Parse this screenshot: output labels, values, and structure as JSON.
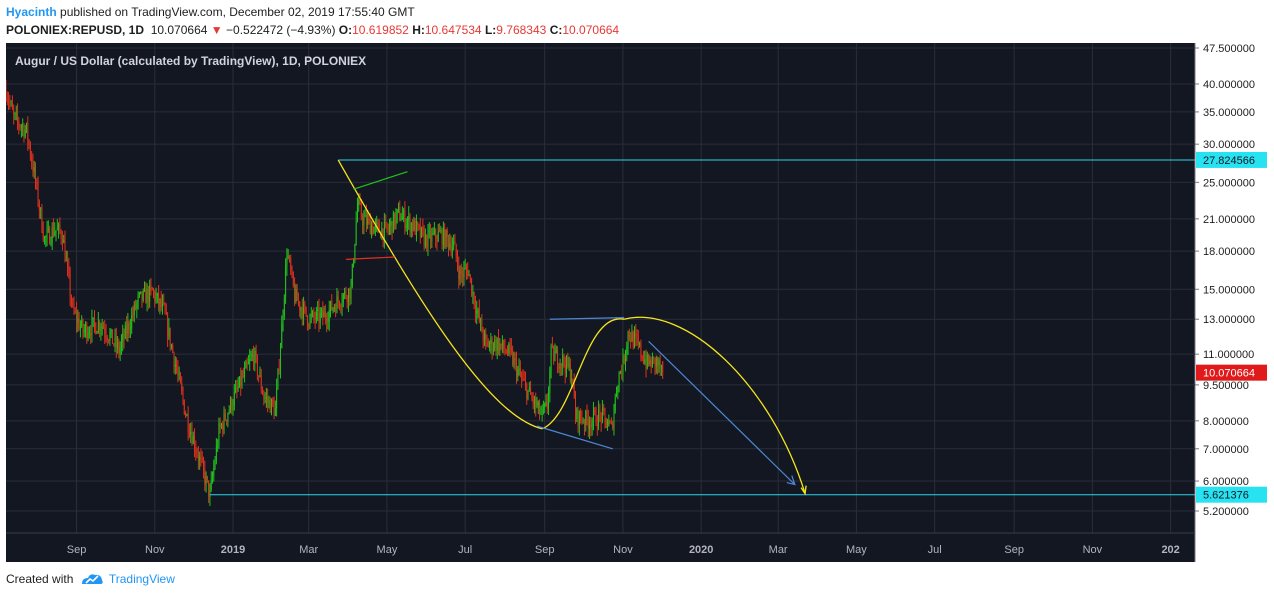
{
  "header": {
    "author": "Hyacinth",
    "published_text": "published on TradingView.com, December 02, 2019 17:55:40 GMT",
    "symbol": "POLONIEX:REPUSD, 1D",
    "last": "10.070664",
    "change_arrow": "▼",
    "change": "−0.522472 (−4.93%)",
    "o_label": "O:",
    "o_value": "10.619852",
    "h_label": "H:",
    "h_value": "10.647534",
    "l_label": "L:",
    "l_value": "9.768343",
    "c_label": "C:",
    "c_value": "10.070664"
  },
  "footer": {
    "created_with": "Created with",
    "brand": "TradingView"
  },
  "colors": {
    "background": "#131722",
    "up": "#22c31b",
    "down": "#e0321d",
    "grid": "#2a2e39",
    "text": "#b2b5be",
    "resistance_line": "#29d6ef",
    "arc": "#f6e61b",
    "wedge": "#4f87d5",
    "price_label": "#e01a1a",
    "level_label": "#27e3f2"
  },
  "chart_data": {
    "type": "candlestick",
    "title": "Augur / US Dollar (calculated by TradingView), 1D, POLONIEX",
    "y_scale": "log",
    "ylim": [
      4.9,
      47.5
    ],
    "yticks": [
      "47.500000",
      "40.000000",
      "35.000000",
      "30.000000",
      "25.000000",
      "21.000000",
      "18.000000",
      "15.000000",
      "13.000000",
      "11.000000",
      "9.500000",
      "8.000000",
      "7.000000",
      "6.000000",
      "5.200000"
    ],
    "xticks": [
      "Sep",
      "Nov",
      "2019",
      "Mar",
      "May",
      "Jul",
      "Sep",
      "Nov",
      "2020",
      "Mar",
      "May",
      "Jul",
      "Sep",
      "Nov",
      "202"
    ],
    "xrange": [
      "2018-07-08",
      "2021-01-20"
    ],
    "price_key_points": [
      [
        "2018-07-08",
        39
      ],
      [
        "2018-07-14",
        34
      ],
      [
        "2018-07-24",
        32
      ],
      [
        "2018-07-30",
        26
      ],
      [
        "2018-08-07",
        19
      ],
      [
        "2018-08-15",
        20
      ],
      [
        "2018-08-21",
        19.5
      ],
      [
        "2018-08-29",
        13.5
      ],
      [
        "2018-09-06",
        12.3
      ],
      [
        "2018-09-20",
        12.8
      ],
      [
        "2018-10-04",
        11.2
      ],
      [
        "2018-10-19",
        14.2
      ],
      [
        "2018-10-30",
        14.8
      ],
      [
        "2018-11-08",
        13.5
      ],
      [
        "2018-11-17",
        10.5
      ],
      [
        "2018-11-25",
        8.3
      ],
      [
        "2018-12-07",
        6.5
      ],
      [
        "2018-12-14",
        5.6
      ],
      [
        "2018-12-21",
        7.6
      ],
      [
        "2018-12-29",
        8.5
      ],
      [
        "2019-01-07",
        9.6
      ],
      [
        "2019-01-17",
        11.0
      ],
      [
        "2019-01-25",
        9.0
      ],
      [
        "2019-02-03",
        8.4
      ],
      [
        "2019-02-08",
        12.5
      ],
      [
        "2019-02-12",
        18.0
      ],
      [
        "2019-02-18",
        14.5
      ],
      [
        "2019-03-01",
        13.0
      ],
      [
        "2019-03-13",
        13.2
      ],
      [
        "2019-03-26",
        14.4
      ],
      [
        "2019-04-03",
        15.0
      ],
      [
        "2019-04-08",
        22.5
      ],
      [
        "2019-04-12",
        21.0
      ],
      [
        "2019-04-22",
        20.0
      ],
      [
        "2019-05-01",
        19.8
      ],
      [
        "2019-05-10",
        21.5
      ],
      [
        "2019-05-20",
        20.5
      ],
      [
        "2019-05-31",
        19.0
      ],
      [
        "2019-06-12",
        19.5
      ],
      [
        "2019-06-22",
        18.5
      ],
      [
        "2019-06-27",
        16.0
      ],
      [
        "2019-07-03",
        16.5
      ],
      [
        "2019-07-10",
        13.5
      ],
      [
        "2019-07-17",
        11.5
      ],
      [
        "2019-07-26",
        11.6
      ],
      [
        "2019-08-05",
        11.0
      ],
      [
        "2019-08-15",
        9.6
      ],
      [
        "2019-08-26",
        8.5
      ],
      [
        "2019-08-30",
        8.2
      ],
      [
        "2019-09-03",
        8.6
      ],
      [
        "2019-09-06",
        11.0
      ],
      [
        "2019-09-16",
        10.6
      ],
      [
        "2019-09-22",
        10.0
      ],
      [
        "2019-09-25",
        8.2
      ],
      [
        "2019-10-05",
        8.0
      ],
      [
        "2019-10-15",
        8.2
      ],
      [
        "2019-10-23",
        7.7
      ],
      [
        "2019-10-28",
        9.8
      ],
      [
        "2019-11-01",
        10.5
      ],
      [
        "2019-11-05",
        12.2
      ],
      [
        "2019-11-12",
        11.5
      ],
      [
        "2019-11-20",
        10.5
      ],
      [
        "2019-11-27",
        10.6
      ],
      [
        "2019-12-02",
        10.07
      ]
    ],
    "annotations": {
      "resistance_level": "27.824566",
      "support_level": "5.621376",
      "current_price": "10.070664"
    }
  }
}
